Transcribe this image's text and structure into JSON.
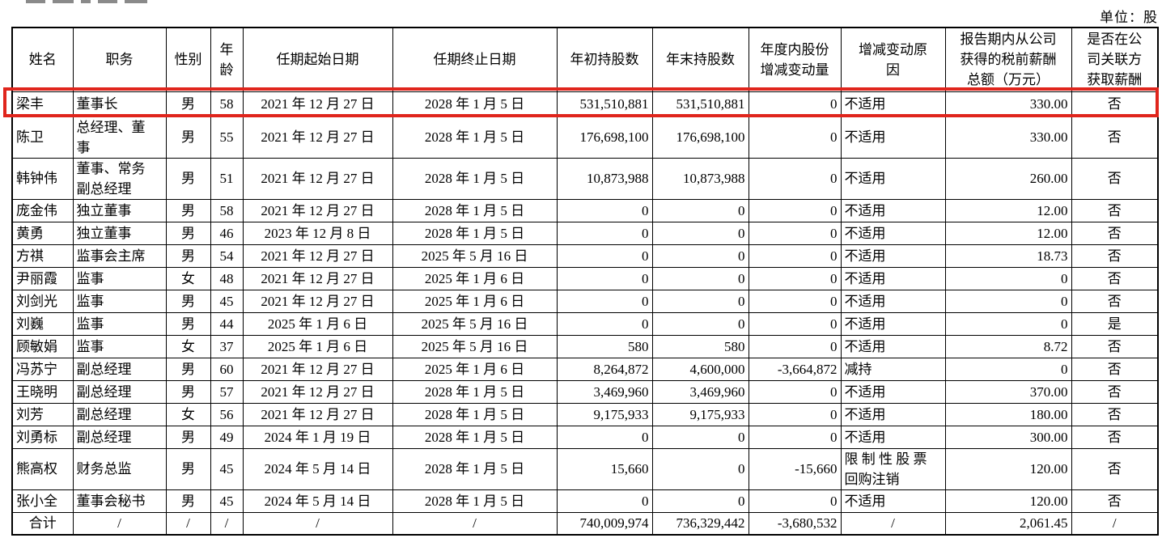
{
  "page": {
    "unit_label": "单位：股"
  },
  "table": {
    "highlight_row_index": 0,
    "highlight_color": "#e0251c",
    "columns": [
      {
        "key": "name",
        "label": "姓名",
        "align": "left"
      },
      {
        "key": "position",
        "label": "职务",
        "align": "left"
      },
      {
        "key": "gender",
        "label": "性别",
        "align": "center"
      },
      {
        "key": "age",
        "label": "年\n龄",
        "align": "center"
      },
      {
        "key": "term_start",
        "label": "任期起始日期",
        "align": "center"
      },
      {
        "key": "term_end",
        "label": "任期终止日期",
        "align": "center"
      },
      {
        "key": "shares_begin",
        "label": "年初持股数",
        "align": "right"
      },
      {
        "key": "shares_end",
        "label": "年末持股数",
        "align": "right"
      },
      {
        "key": "share_change",
        "label": "年度内股份\n增减变动量",
        "align": "right"
      },
      {
        "key": "change_reason",
        "label": "增减变动原\n因",
        "align": "left"
      },
      {
        "key": "compensation",
        "label": "报告期内从公司\n获得的税前薪酬\n总额（万元）",
        "align": "right"
      },
      {
        "key": "related_party",
        "label": "是否在公\n司关联方\n获取薪酬",
        "align": "center"
      }
    ],
    "rows": [
      {
        "name": "梁丰",
        "position": "董事长",
        "gender": "男",
        "age": "58",
        "term_start": "2021 年 12 月 27 日",
        "term_end": "2028 年 1 月 5 日",
        "shares_begin": "531,510,881",
        "shares_end": "531,510,881",
        "share_change": "0",
        "change_reason": "不适用",
        "compensation": "330.00",
        "related_party": "否"
      },
      {
        "name": "陈卫",
        "position": "总经理、董\n事",
        "gender": "男",
        "age": "55",
        "term_start": "2021 年 12 月 27 日",
        "term_end": "2028 年 1 月 5 日",
        "shares_begin": "176,698,100",
        "shares_end": "176,698,100",
        "share_change": "0",
        "change_reason": "不适用",
        "compensation": "330.00",
        "related_party": "否"
      },
      {
        "name": "韩钟伟",
        "position": "董事、常务\n副总经理",
        "gender": "男",
        "age": "51",
        "term_start": "2021 年 12 月 27 日",
        "term_end": "2028 年 1 月 5 日",
        "shares_begin": "10,873,988",
        "shares_end": "10,873,988",
        "share_change": "0",
        "change_reason": "不适用",
        "compensation": "260.00",
        "related_party": "否"
      },
      {
        "name": "庞金伟",
        "position": "独立董事",
        "gender": "男",
        "age": "58",
        "term_start": "2021 年 12 月 27 日",
        "term_end": "2028 年 1 月 5 日",
        "shares_begin": "0",
        "shares_end": "0",
        "share_change": "0",
        "change_reason": "不适用",
        "compensation": "12.00",
        "related_party": "否"
      },
      {
        "name": "黄勇",
        "position": "独立董事",
        "gender": "男",
        "age": "46",
        "term_start": "2023 年 12 月 8 日",
        "term_end": "2028 年 1 月 5 日",
        "shares_begin": "0",
        "shares_end": "0",
        "share_change": "0",
        "change_reason": "不适用",
        "compensation": "12.00",
        "related_party": "否"
      },
      {
        "name": "方祺",
        "position": "监事会主席",
        "gender": "男",
        "age": "54",
        "term_start": "2021 年 12 月 27 日",
        "term_end": "2025 年 5 月 16 日",
        "shares_begin": "0",
        "shares_end": "0",
        "share_change": "0",
        "change_reason": "不适用",
        "compensation": "18.73",
        "related_party": "否"
      },
      {
        "name": "尹丽霞",
        "position": "监事",
        "gender": "女",
        "age": "48",
        "term_start": "2021 年 12 月 27 日",
        "term_end": "2025 年 1 月 6 日",
        "shares_begin": "0",
        "shares_end": "0",
        "share_change": "0",
        "change_reason": "不适用",
        "compensation": "0",
        "related_party": "否"
      },
      {
        "name": "刘剑光",
        "position": "监事",
        "gender": "男",
        "age": "45",
        "term_start": "2021 年 12 月 27 日",
        "term_end": "2025 年 1 月 6 日",
        "shares_begin": "0",
        "shares_end": "0",
        "share_change": "0",
        "change_reason": "不适用",
        "compensation": "0",
        "related_party": "否"
      },
      {
        "name": "刘巍",
        "position": "监事",
        "gender": "男",
        "age": "44",
        "term_start": "2025 年 1 月 6 日",
        "term_end": "2025 年 5 月 16 日",
        "shares_begin": "0",
        "shares_end": "0",
        "share_change": "0",
        "change_reason": "不适用",
        "compensation": "0",
        "related_party": "是"
      },
      {
        "name": "顾敏娟",
        "position": "监事",
        "gender": "女",
        "age": "37",
        "term_start": "2025 年 1 月 6 日",
        "term_end": "2025 年 5 月 16 日",
        "shares_begin": "580",
        "shares_end": "580",
        "share_change": "0",
        "change_reason": "不适用",
        "compensation": "8.72",
        "related_party": "否"
      },
      {
        "name": "冯苏宁",
        "position": "副总经理",
        "gender": "男",
        "age": "60",
        "term_start": "2021 年 12 月 27 日",
        "term_end": "2025 年 1 月 6 日",
        "shares_begin": "8,264,872",
        "shares_end": "4,600,000",
        "share_change": "-3,664,872",
        "change_reason": "减持",
        "compensation": "0",
        "related_party": "否"
      },
      {
        "name": "王晓明",
        "position": "副总经理",
        "gender": "男",
        "age": "57",
        "term_start": "2021 年 12 月 27 日",
        "term_end": "2028 年 1 月 5 日",
        "shares_begin": "3,469,960",
        "shares_end": "3,469,960",
        "share_change": "0",
        "change_reason": "不适用",
        "compensation": "370.00",
        "related_party": "否"
      },
      {
        "name": "刘芳",
        "position": "副总经理",
        "gender": "女",
        "age": "56",
        "term_start": "2021 年 12 月 27 日",
        "term_end": "2028 年 1 月 5 日",
        "shares_begin": "9,175,933",
        "shares_end": "9,175,933",
        "share_change": "0",
        "change_reason": "不适用",
        "compensation": "180.00",
        "related_party": "否"
      },
      {
        "name": "刘勇标",
        "position": "副总经理",
        "gender": "男",
        "age": "49",
        "term_start": "2024 年 1 月 19 日",
        "term_end": "2028 年 1 月 5 日",
        "shares_begin": "0",
        "shares_end": "0",
        "share_change": "0",
        "change_reason": "不适用",
        "compensation": "300.00",
        "related_party": "否"
      },
      {
        "name": "熊高权",
        "position": "财务总监",
        "gender": "男",
        "age": "45",
        "term_start": "2024 年 5 月 14 日",
        "term_end": "2028 年 1 月 5 日",
        "shares_begin": "15,660",
        "shares_end": "0",
        "share_change": "-15,660",
        "change_reason": "限 制 性 股 票\n回购注销",
        "compensation": "120.00",
        "related_party": "否"
      },
      {
        "name": "张小全",
        "position": "董事会秘书",
        "gender": "男",
        "age": "45",
        "term_start": "2024 年 5 月 14 日",
        "term_end": "2028 年 1 月 5 日",
        "shares_begin": "0",
        "shares_end": "0",
        "share_change": "0",
        "change_reason": "不适用",
        "compensation": "120.00",
        "related_party": "否"
      },
      {
        "name": "合计",
        "position": "/",
        "gender": "/",
        "age": "/",
        "term_start": "/",
        "term_end": "/",
        "shares_begin": "740,009,974",
        "shares_end": "736,329,442",
        "share_change": "-3,680,532",
        "change_reason": "/",
        "compensation": "2,061.45",
        "related_party": "/",
        "total": true
      }
    ]
  }
}
